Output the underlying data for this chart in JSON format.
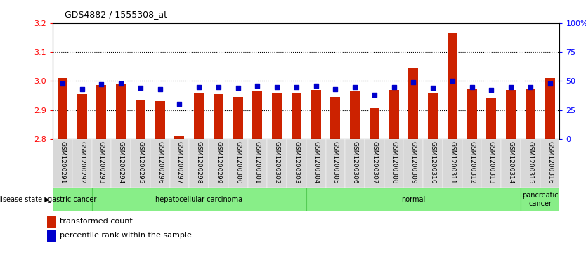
{
  "title": "GDS4882 / 1555308_at",
  "samples": [
    "GSM1200291",
    "GSM1200292",
    "GSM1200293",
    "GSM1200294",
    "GSM1200295",
    "GSM1200296",
    "GSM1200297",
    "GSM1200298",
    "GSM1200299",
    "GSM1200300",
    "GSM1200301",
    "GSM1200302",
    "GSM1200303",
    "GSM1200304",
    "GSM1200305",
    "GSM1200306",
    "GSM1200307",
    "GSM1200308",
    "GSM1200309",
    "GSM1200310",
    "GSM1200311",
    "GSM1200312",
    "GSM1200313",
    "GSM1200314",
    "GSM1200315",
    "GSM1200316"
  ],
  "red_values": [
    3.01,
    2.955,
    2.985,
    2.99,
    2.935,
    2.93,
    2.81,
    2.96,
    2.955,
    2.945,
    2.965,
    2.96,
    2.96,
    2.97,
    2.945,
    2.965,
    2.905,
    2.97,
    3.045,
    2.96,
    3.165,
    2.975,
    2.94,
    2.97,
    2.975,
    3.01
  ],
  "blue_values": [
    48,
    43,
    47,
    48,
    44,
    43,
    30,
    45,
    45,
    44,
    46,
    45,
    45,
    46,
    43,
    45,
    38,
    45,
    49,
    44,
    50,
    45,
    42,
    45,
    45,
    48
  ],
  "ylim_left": [
    2.8,
    3.2
  ],
  "ylim_right": [
    0,
    100
  ],
  "yticks_left": [
    2.8,
    2.9,
    3.0,
    3.1,
    3.2
  ],
  "yticks_right": [
    0,
    25,
    50,
    75,
    100
  ],
  "ytick_labels_right": [
    "0",
    "25",
    "50",
    "75",
    "100%"
  ],
  "group_definitions": [
    {
      "label": "gastric cancer",
      "start": 0,
      "end": 2
    },
    {
      "label": "hepatocellular carcinoma",
      "start": 2,
      "end": 13
    },
    {
      "label": "normal",
      "start": 13,
      "end": 24
    },
    {
      "label": "pancreatic\ncancer",
      "start": 24,
      "end": 26
    }
  ],
  "group_boundaries": [
    2,
    13,
    24
  ],
  "red_color": "#cc2200",
  "blue_color": "#0000cc",
  "bar_width": 0.5,
  "base_value": 2.8,
  "label_red": "transformed count",
  "label_blue": "percentile rank within the sample",
  "tick_bg_color": "#d8d8d8",
  "group_color": "#88ee88",
  "group_edge_color": "#55cc55"
}
